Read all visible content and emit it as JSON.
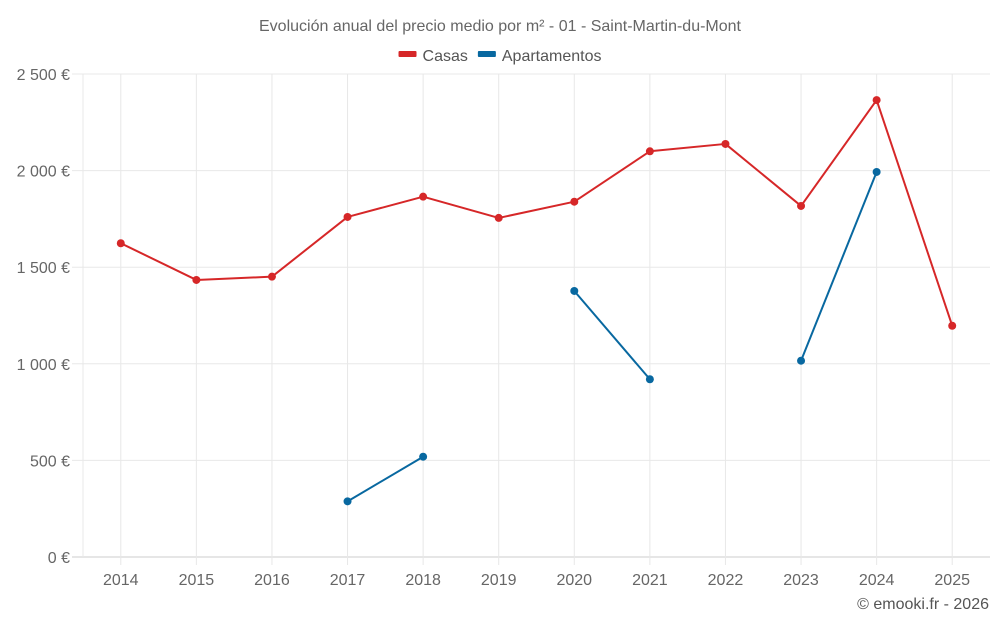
{
  "chart_data": {
    "type": "line",
    "title": "Evolución anual del precio medio por m² - 01 - Saint-Martin-du-Mont",
    "xlabel": "",
    "ylabel": "",
    "categories": [
      "2014",
      "2015",
      "2016",
      "2017",
      "2018",
      "2019",
      "2020",
      "2021",
      "2022",
      "2023",
      "2024",
      "2025"
    ],
    "ylim": [
      0,
      2500
    ],
    "yticks": [
      0,
      500,
      1000,
      1500,
      2000,
      2500
    ],
    "ytick_labels": [
      "0 €",
      "500 €",
      "1 000 €",
      "1 500 €",
      "2 000 €",
      "2 500 €"
    ],
    "grid": true,
    "legend_position": "top-center",
    "series": [
      {
        "name": "Casas",
        "color": "#d62728",
        "values": [
          1624,
          1434,
          1451,
          1760,
          1865,
          1755,
          1839,
          2100,
          2138,
          1817,
          2365,
          1197
        ]
      },
      {
        "name": "Apartamentos",
        "color": "#0868a0",
        "values": [
          null,
          null,
          null,
          288,
          519,
          null,
          1377,
          920,
          null,
          1016,
          1993,
          null
        ]
      }
    ]
  },
  "footer": "© emooki.fr - 2026"
}
